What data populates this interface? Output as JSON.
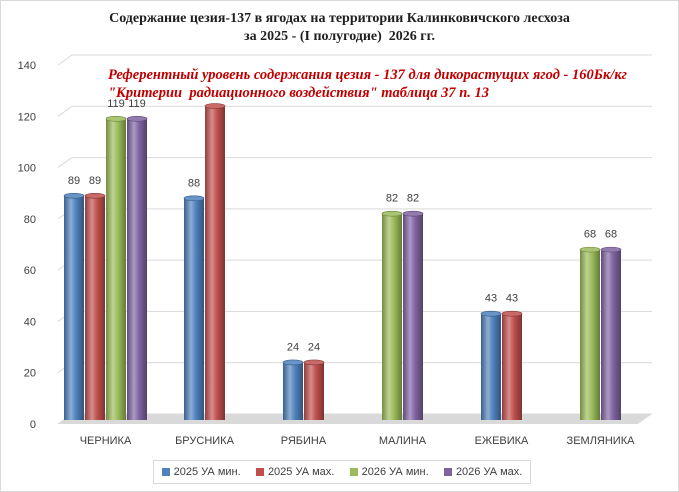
{
  "chart_data": {
    "type": "bar",
    "title_lines": [
      "Содержание цезия-137 в ягодах на территории Калинковичского лесхоза",
      "за 2025 - (I полугодие)  2026 гг."
    ],
    "annotation_lines": [
      "Референтный уровень содержания цезия - 137 для дикорастущих ягод - 160Бк/кг",
      "\"Критерии  радиационного воздействия\" таблица 37 п. 13"
    ],
    "categories": [
      "ЧЕРНИКА",
      "БРУСНИКА",
      "РЯБИНА",
      "МАЛИНА",
      "ЕЖЕВИКА",
      "ЗЕМЛЯНИКА"
    ],
    "series": [
      {
        "name": "2025 УА мин.",
        "color": "#4f81bd",
        "values": [
          89,
          88,
          24,
          null,
          43,
          null
        ],
        "labels": [
          "89",
          "88",
          "24",
          null,
          "43",
          null
        ]
      },
      {
        "name": "2025 УА мах.",
        "color": "#c0504d",
        "values": [
          89,
          124,
          24,
          null,
          43,
          null
        ],
        "labels": [
          "89",
          "",
          "24",
          null,
          "43",
          null
        ]
      },
      {
        "name": "2026 УА мин.",
        "color": "#9bbb59",
        "values": [
          119,
          null,
          null,
          82,
          null,
          68
        ],
        "labels": [
          "119",
          null,
          null,
          "82",
          null,
          "68"
        ]
      },
      {
        "name": "2026 УА мах.",
        "color": "#8064a2",
        "values": [
          119,
          null,
          null,
          82,
          null,
          68
        ],
        "labels": [
          "119",
          null,
          null,
          "82",
          null,
          "68"
        ]
      }
    ],
    "ylim": [
      0,
      140
    ],
    "yticks": [
      0,
      20,
      40,
      60,
      80,
      100,
      120,
      140
    ],
    "grid": true,
    "legend_position": "bottom"
  }
}
